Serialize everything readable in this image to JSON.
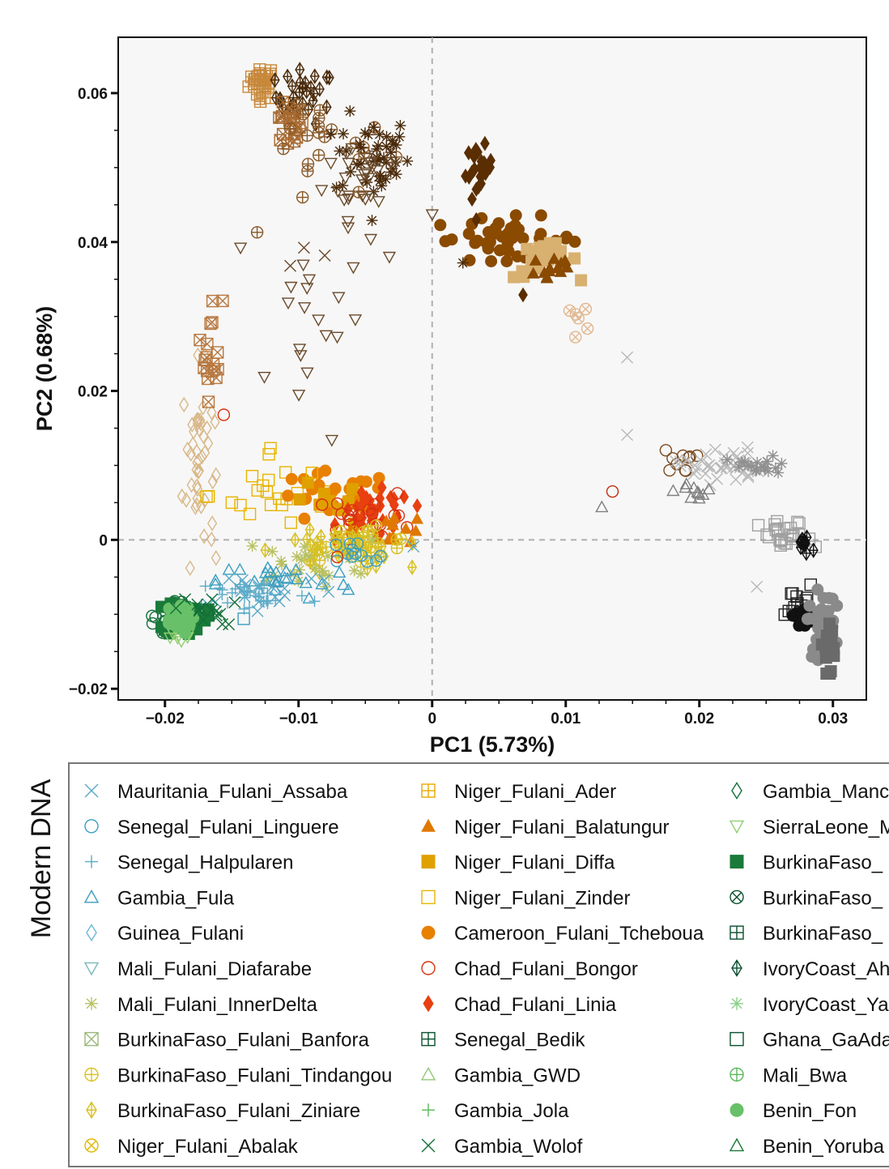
{
  "chart_data": {
    "type": "scatter",
    "xlabel": "PC1 (5.73%)",
    "ylabel": "PC2 (0.68%)",
    "xlim": [
      -0.0235,
      0.0325
    ],
    "ylim": [
      -0.0215,
      0.0675
    ],
    "x_ticks": [
      {
        "value": -0.02,
        "label": "−0.02"
      },
      {
        "value": -0.01,
        "label": "−0.01"
      },
      {
        "value": 0,
        "label": "0"
      },
      {
        "value": 0.01,
        "label": "0.01"
      },
      {
        "value": 0.02,
        "label": "0.02"
      },
      {
        "value": 0.03,
        "label": "0.03"
      }
    ],
    "y_ticks": [
      {
        "value": 0.06,
        "label": "0.06"
      },
      {
        "value": 0.04,
        "label": "0.04"
      },
      {
        "value": 0.02,
        "label": "0.02"
      },
      {
        "value": 0,
        "label": "0"
      },
      {
        "value": -0.02,
        "label": "−0.02"
      }
    ],
    "reference_lines": {
      "x": 0,
      "y": 0,
      "style": "dashed"
    },
    "grid": false,
    "legend": {
      "title": "Modern DNA",
      "placement": "bottom",
      "columns": [
        [
          {
            "label": "Mauritania_Fulani_Assaba",
            "marker": "x",
            "color": "#5aaac8"
          },
          {
            "label": "Senegal_Fulani_Linguere",
            "marker": "circle",
            "color": "#3a9ec0"
          },
          {
            "label": "Senegal_Halpularen",
            "marker": "plus",
            "color": "#5aaac8"
          },
          {
            "label": "Gambia_Fula",
            "marker": "triangle",
            "color": "#3a9ec0"
          },
          {
            "label": "Guinea_Fulani",
            "marker": "diamond",
            "color": "#6ab8d4"
          },
          {
            "label": "Mali_Fulani_Diafarabe",
            "marker": "triangle-down",
            "color": "#7ab8b8"
          },
          {
            "label": "Mali_Fulani_InnerDelta",
            "marker": "asterisk",
            "color": "#b8c060"
          },
          {
            "label": "BurkinaFaso_Fulani_Banfora",
            "marker": "square-x",
            "color": "#9ab87a"
          },
          {
            "label": "BurkinaFaso_Fulani_Tindangou",
            "marker": "circle-plus",
            "color": "#d8c020"
          },
          {
            "label": "BurkinaFaso_Fulani_Ziniare",
            "marker": "diamond-plus",
            "color": "#d8c020"
          },
          {
            "label": "Niger_Fulani_Abalak",
            "marker": "circle-x",
            "color": "#e0b800"
          }
        ],
        [
          {
            "label": "Niger_Fulani_Ader",
            "marker": "square-plus",
            "color": "#e8a800"
          },
          {
            "label": "Niger_Fulani_Balatungur",
            "marker": "triangle-filled",
            "color": "#e07800"
          },
          {
            "label": "Niger_Fulani_Diffa",
            "marker": "square-filled",
            "color": "#e0a000"
          },
          {
            "label": "Niger_Fulani_Zinder",
            "marker": "square",
            "color": "#e8b400"
          },
          {
            "label": "Cameroon_Fulani_Tcheboua",
            "marker": "circle-filled",
            "color": "#e88000"
          },
          {
            "label": "Chad_Fulani_Bongor",
            "marker": "circle",
            "color": "#d83010"
          },
          {
            "label": "Chad_Fulani_Linia",
            "marker": "diamond-filled",
            "color": "#e84010"
          },
          {
            "label": "Senegal_Bedik",
            "marker": "square-plus",
            "color": "#0a5030"
          },
          {
            "label": "Gambia_GWD",
            "marker": "triangle",
            "color": "#90c878"
          },
          {
            "label": "Gambia_Jola",
            "marker": "plus",
            "color": "#58b858"
          },
          {
            "label": "Gambia_Wolof",
            "marker": "x",
            "color": "#127038"
          }
        ],
        [
          {
            "label": "Gambia_Manc",
            "marker": "diamond",
            "color": "#127038"
          },
          {
            "label": "SierraLeone_M",
            "marker": "triangle-down",
            "color": "#90d070"
          },
          {
            "label": "BurkinaFaso_",
            "marker": "square-filled",
            "color": "#1a7a3a"
          },
          {
            "label": "BurkinaFaso_",
            "marker": "circle-x",
            "color": "#0a5030"
          },
          {
            "label": "BurkinaFaso_",
            "marker": "square-plus",
            "color": "#0a5030"
          },
          {
            "label": "IvoryCoast_Ah",
            "marker": "diamond-plus",
            "color": "#0a5030"
          },
          {
            "label": "IvoryCoast_Ya",
            "marker": "asterisk",
            "color": "#88d088"
          },
          {
            "label": "Ghana_GaAda",
            "marker": "square",
            "color": "#0a5030"
          },
          {
            "label": "Mali_Bwa",
            "marker": "circle-plus",
            "color": "#58b858"
          },
          {
            "label": "Benin_Fon",
            "marker": "circle-filled",
            "color": "#68c068"
          },
          {
            "label": "Benin_Yoruba",
            "marker": "triangle",
            "color": "#1a7a3a"
          }
        ]
      ]
    },
    "clusters": [
      {
        "name": "ancient-brown-ader",
        "marker": "square-plus",
        "color": "#c8883a",
        "cx": -0.0127,
        "cy": 0.0615,
        "sx": 0.0005,
        "sy": 0.0012,
        "n": 25
      },
      {
        "name": "ancient-dark-diamond-top",
        "marker": "diamond-plus",
        "color": "#4a2a0a",
        "cx": -0.0095,
        "cy": 0.0595,
        "sx": 0.0011,
        "sy": 0.0018,
        "n": 30
      },
      {
        "name": "ancient-tan-squares",
        "marker": "square-x",
        "color": "#a86a30",
        "cx": -0.0108,
        "cy": 0.0555,
        "sx": 0.0006,
        "sy": 0.0015,
        "n": 20
      },
      {
        "name": "ancient-circle-plus",
        "marker": "circle-plus",
        "color": "#8a5a2a",
        "cx": -0.0082,
        "cy": 0.053,
        "sx": 0.0026,
        "sy": 0.0028,
        "n": 20
      },
      {
        "name": "ancient-dark-asterisk-top",
        "marker": "asterisk",
        "color": "#4a2a0a",
        "cx": -0.0045,
        "cy": 0.0515,
        "sx": 0.0014,
        "sy": 0.0028,
        "n": 45
      },
      {
        "name": "ancient-triangle-down",
        "marker": "triangle-down",
        "color": "#6a4a2a",
        "cx": -0.0048,
        "cy": 0.0495,
        "sx": 0.0016,
        "sy": 0.003,
        "n": 25
      },
      {
        "name": "ancient-scatter-triangle-down",
        "marker": "triangle-down",
        "color": "#6a4a2a",
        "cx": -0.0095,
        "cy": 0.03,
        "sx": 0.0022,
        "sy": 0.008,
        "n": 18
      },
      {
        "name": "ancient-scatter-x",
        "marker": "x",
        "color": "#6a4a2a",
        "cx": -0.0098,
        "cy": 0.0385,
        "sx": 0.0008,
        "sy": 0.0008,
        "n": 3
      },
      {
        "name": "tan-diamond-vertical",
        "marker": "diamond",
        "color": "#d8b888",
        "cx": -0.0175,
        "cy": 0.0105,
        "sx": 0.0006,
        "sy": 0.0065,
        "n": 45
      },
      {
        "name": "brown-square-x-vertical",
        "marker": "square-x",
        "color": "#b87840",
        "cx": -0.0165,
        "cy": 0.026,
        "sx": 0.0004,
        "sy": 0.0035,
        "n": 18
      },
      {
        "name": "dark-diamond-filled",
        "marker": "diamond-filled",
        "color": "#5a2e00",
        "cx": 0.0035,
        "cy": 0.0495,
        "sx": 0.0005,
        "sy": 0.0017,
        "n": 22
      },
      {
        "name": "brown-circle-filled-arc",
        "marker": "circle-filled",
        "color": "#8a4a00",
        "cx": 0.0055,
        "cy": 0.0405,
        "sx": 0.0028,
        "sy": 0.0014,
        "n": 40
      },
      {
        "name": "tan-square-filled-arc",
        "marker": "square-filled",
        "color": "#d8b070",
        "cx": 0.0085,
        "cy": 0.0375,
        "sx": 0.0012,
        "sy": 0.0012,
        "n": 25
      },
      {
        "name": "dark-triangle-arc",
        "marker": "triangle-filled",
        "color": "#8a4a00",
        "cx": 0.009,
        "cy": 0.0365,
        "sx": 0.0009,
        "sy": 0.0012,
        "n": 15
      },
      {
        "name": "circle-x-tail",
        "marker": "circle-x",
        "color": "#e0b890",
        "cx": 0.0108,
        "cy": 0.03,
        "sx": 0.0009,
        "sy": 0.0025,
        "n": 6
      },
      {
        "name": "niger-zinder",
        "marker": "square",
        "color": "#e8b400",
        "cx": -0.011,
        "cy": 0.006,
        "sx": 0.0028,
        "sy": 0.0025,
        "n": 20
      },
      {
        "name": "cameroon-tcheboua",
        "marker": "circle-filled",
        "color": "#e88000",
        "cx": -0.0075,
        "cy": 0.0055,
        "sx": 0.0022,
        "sy": 0.0018,
        "n": 30
      },
      {
        "name": "niger-diffa",
        "marker": "square-filled",
        "color": "#e0a000",
        "cx": -0.0085,
        "cy": 0.0045,
        "sx": 0.0018,
        "sy": 0.0015,
        "n": 10
      },
      {
        "name": "chad-linia",
        "marker": "diamond-filled",
        "color": "#e84010",
        "cx": -0.0042,
        "cy": 0.0035,
        "sx": 0.0014,
        "sy": 0.0016,
        "n": 35
      },
      {
        "name": "chad-bongor",
        "marker": "circle",
        "color": "#d83010",
        "cx": -0.0045,
        "cy": 0.003,
        "sx": 0.0017,
        "sy": 0.0017,
        "n": 22
      },
      {
        "name": "niger-balatungur",
        "marker": "triangle-filled",
        "color": "#e07800",
        "cx": -0.003,
        "cy": 0.0015,
        "sx": 0.0014,
        "sy": 0.001,
        "n": 15
      },
      {
        "name": "yellow-tindangou",
        "marker": "circle-plus",
        "color": "#d8c020",
        "cx": -0.0055,
        "cy": -0.0005,
        "sx": 0.0022,
        "sy": 0.0011,
        "n": 30
      },
      {
        "name": "yellow-ziniare",
        "marker": "diamond-plus",
        "color": "#d8c020",
        "cx": -0.007,
        "cy": -0.0015,
        "sx": 0.0025,
        "sy": 0.0013,
        "n": 35
      },
      {
        "name": "innerdelta",
        "marker": "asterisk",
        "color": "#b8c060",
        "cx": -0.0095,
        "cy": -0.003,
        "sx": 0.0025,
        "sy": 0.0015,
        "n": 25
      },
      {
        "name": "blue-linguere",
        "marker": "circle",
        "color": "#3a9ec0",
        "cx": -0.0065,
        "cy": -0.0025,
        "sx": 0.0018,
        "sy": 0.0012,
        "n": 12
      },
      {
        "name": "blue-fula",
        "marker": "triangle",
        "color": "#3a9ec0",
        "cx": -0.011,
        "cy": -0.0055,
        "sx": 0.0025,
        "sy": 0.0013,
        "n": 25
      },
      {
        "name": "blue-halpularen",
        "marker": "plus",
        "color": "#5aaac8",
        "cx": -0.0135,
        "cy": -0.0075,
        "sx": 0.0022,
        "sy": 0.0012,
        "n": 30
      },
      {
        "name": "blue-assaba",
        "marker": "x",
        "color": "#5aaac8",
        "cx": -0.0125,
        "cy": -0.0065,
        "sx": 0.003,
        "sy": 0.0014,
        "n": 20
      },
      {
        "name": "green-main-circles",
        "marker": "circle",
        "color": "#127038",
        "cx": -0.0192,
        "cy": -0.0105,
        "sx": 0.0008,
        "sy": 0.0012,
        "n": 35
      },
      {
        "name": "green-squares",
        "marker": "square-filled",
        "color": "#1a7a3a",
        "cx": -0.0185,
        "cy": -0.0103,
        "sx": 0.0008,
        "sy": 0.0012,
        "n": 35
      },
      {
        "name": "green-light-triangle",
        "marker": "triangle-down",
        "color": "#90d070",
        "cx": -0.019,
        "cy": -0.0125,
        "sx": 0.0006,
        "sy": 0.001,
        "n": 15
      },
      {
        "name": "green-fon",
        "marker": "circle-filled",
        "color": "#68c068",
        "cx": -0.0192,
        "cy": -0.0108,
        "sx": 0.0006,
        "sy": 0.0009,
        "n": 25
      },
      {
        "name": "green-x",
        "marker": "x",
        "color": "#127038",
        "cx": -0.017,
        "cy": -0.0095,
        "sx": 0.0012,
        "sy": 0.001,
        "n": 15
      },
      {
        "name": "grey-brown-circles",
        "marker": "circle",
        "color": "#7a4a20",
        "cx": 0.0185,
        "cy": 0.0105,
        "sx": 0.0006,
        "sy": 0.0008,
        "n": 10
      },
      {
        "name": "grey-light-x",
        "marker": "x",
        "color": "#b8b8b8",
        "cx": 0.0215,
        "cy": 0.01,
        "sx": 0.0015,
        "sy": 0.0012,
        "n": 40
      },
      {
        "name": "grey-asterisk",
        "marker": "asterisk",
        "color": "#909090",
        "cx": 0.0245,
        "cy": 0.0098,
        "sx": 0.0012,
        "sy": 0.0007,
        "n": 20
      },
      {
        "name": "grey-triangles",
        "marker": "triangle",
        "color": "#808080",
        "cx": 0.0198,
        "cy": 0.0065,
        "sx": 0.0008,
        "sy": 0.0006,
        "n": 10
      },
      {
        "name": "grey-squares-zero",
        "marker": "square",
        "color": "#a0a0a0",
        "cx": 0.0265,
        "cy": 0.0002,
        "sx": 0.001,
        "sy": 0.0012,
        "n": 25
      },
      {
        "name": "black-diamond-zero",
        "marker": "diamond-plus",
        "color": "#111111",
        "cx": 0.028,
        "cy": -0.0005,
        "sx": 0.0005,
        "sy": 0.0008,
        "n": 12
      },
      {
        "name": "black-squares-low",
        "marker": "square",
        "color": "#222222",
        "cx": 0.0275,
        "cy": -0.0085,
        "sx": 0.0005,
        "sy": 0.0012,
        "n": 15
      },
      {
        "name": "black-filled-low",
        "marker": "circle-filled",
        "color": "#111111",
        "cx": 0.0277,
        "cy": -0.0102,
        "sx": 0.0004,
        "sy": 0.0006,
        "n": 20
      },
      {
        "name": "grey-filled-low",
        "marker": "circle-filled",
        "color": "#8a8a8a",
        "cx": 0.0292,
        "cy": -0.0115,
        "sx": 0.0005,
        "sy": 0.0022,
        "n": 40
      },
      {
        "name": "grey-square-filled-low",
        "marker": "square-filled",
        "color": "#6a6a6a",
        "cx": 0.0297,
        "cy": -0.014,
        "sx": 0.0004,
        "sy": 0.0018,
        "n": 20
      }
    ],
    "points": [
      {
        "x": -0.0131,
        "y": 0.0413,
        "marker": "circle-plus",
        "color": "#8a5a2a"
      },
      {
        "x": -0.0097,
        "y": 0.046,
        "marker": "circle-plus",
        "color": "#8a5a2a"
      },
      {
        "x": -0.0055,
        "y": 0.0467,
        "marker": "circle-plus",
        "color": "#8a5a2a"
      },
      {
        "x": 0.0,
        "y": 0.0437,
        "marker": "triangle-down",
        "color": "#6a4a2a"
      },
      {
        "x": -0.0063,
        "y": 0.0428,
        "marker": "triangle-down",
        "color": "#6a4a2a"
      },
      {
        "x": -0.0046,
        "y": 0.0404,
        "marker": "triangle-down",
        "color": "#6a4a2a"
      },
      {
        "x": -0.0032,
        "y": 0.038,
        "marker": "triangle-down",
        "color": "#6a4a2a"
      },
      {
        "x": -0.0059,
        "y": 0.0366,
        "marker": "triangle-down",
        "color": "#6a4a2a"
      },
      {
        "x": -0.007,
        "y": 0.0326,
        "marker": "triangle-down",
        "color": "#6a4a2a"
      },
      {
        "x": -0.0045,
        "y": 0.0429,
        "marker": "asterisk",
        "color": "#4a2a0a"
      },
      {
        "x": 0.0023,
        "y": 0.0372,
        "marker": "asterisk",
        "color": "#4a2a0a"
      },
      {
        "x": 0.0033,
        "y": 0.043,
        "marker": "diamond-filled",
        "color": "#5a2e00"
      },
      {
        "x": 0.0068,
        "y": 0.0329,
        "marker": "diamond-filled",
        "color": "#5a2e00"
      },
      {
        "x": 0.0146,
        "y": 0.0245,
        "marker": "x",
        "color": "#b8b8b8"
      },
      {
        "x": 0.0146,
        "y": 0.0141,
        "marker": "x",
        "color": "#b8b8b8"
      },
      {
        "x": 0.0243,
        "y": -0.0063,
        "marker": "x",
        "color": "#b8b8b8"
      },
      {
        "x": 0.0135,
        "y": 0.0065,
        "marker": "circle",
        "color": "#c03010"
      },
      {
        "x": 0.0127,
        "y": 0.0044,
        "marker": "triangle",
        "color": "#808080"
      },
      {
        "x": -0.0156,
        "y": 0.0168,
        "marker": "circle",
        "color": "#d83010"
      },
      {
        "x": -0.0071,
        "y": -0.0023,
        "marker": "circle",
        "color": "#d83010"
      },
      {
        "x": -0.0014,
        "y": -0.0009,
        "marker": "x",
        "color": "#5aaac8"
      },
      {
        "x": -0.0141,
        "y": -0.0106,
        "marker": "square",
        "color": "#3a9ec0"
      },
      {
        "x": -0.0121,
        "y": 0.0123,
        "marker": "square",
        "color": "#e8b400"
      },
      {
        "x": -0.015,
        "y": 0.005,
        "marker": "square",
        "color": "#e8b400"
      },
      {
        "x": -0.009,
        "y": 0.009,
        "marker": "square",
        "color": "#e8b400"
      }
    ]
  }
}
